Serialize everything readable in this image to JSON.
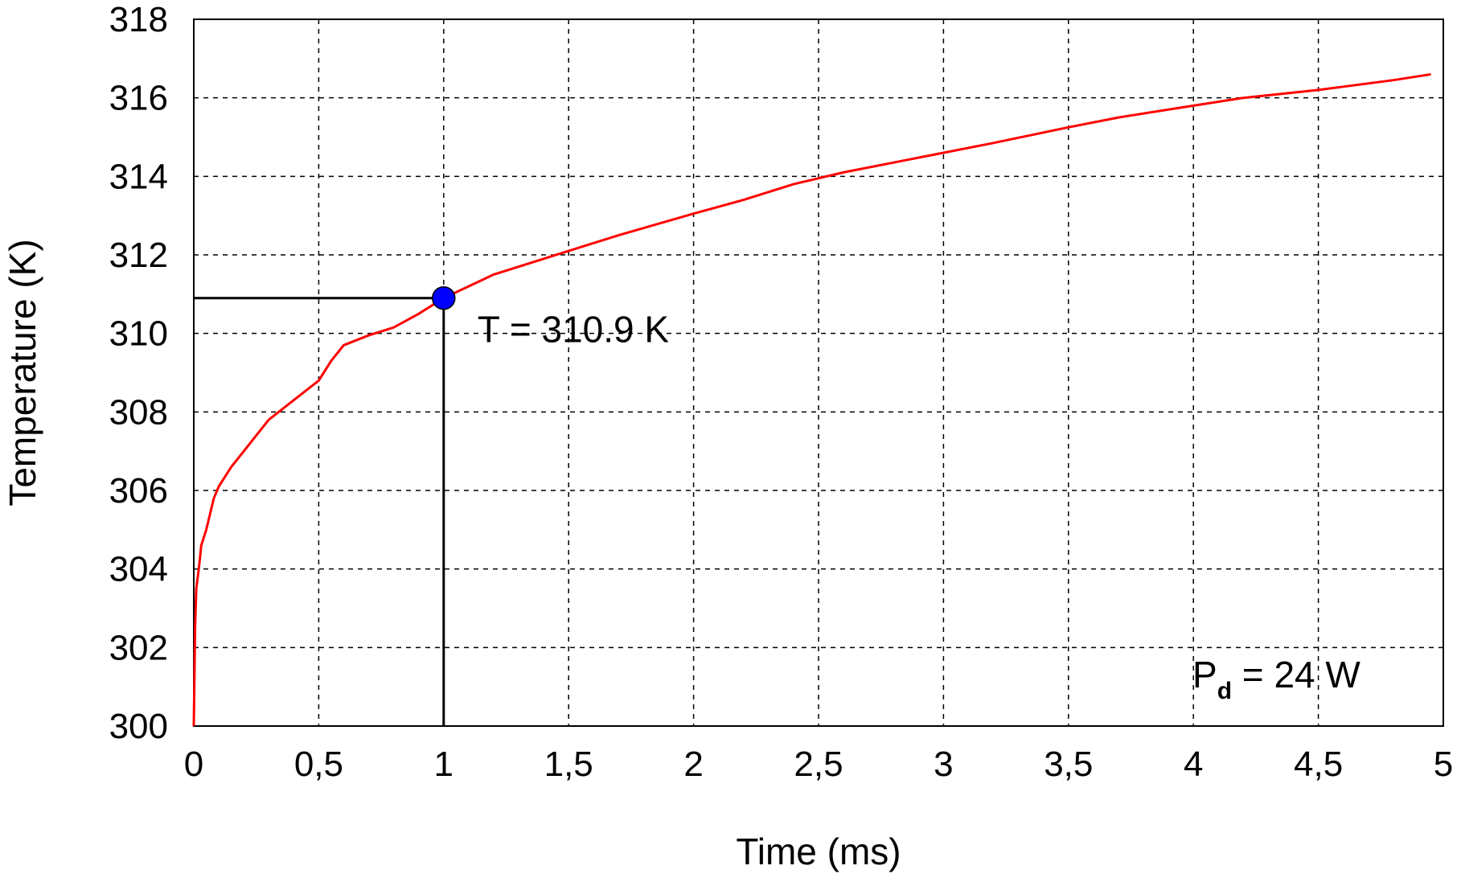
{
  "chart_data": {
    "type": "line",
    "xlabel": "Time (ms)",
    "ylabel": "Temperature (K)",
    "xlim": [
      0,
      5
    ],
    "ylim": [
      300,
      318
    ],
    "x_ticks": [
      0,
      0.5,
      1,
      1.5,
      2,
      2.5,
      3,
      3.5,
      4,
      4.5,
      5
    ],
    "x_tick_labels": [
      "0",
      "0,5",
      "1",
      "1,5",
      "2",
      "2,5",
      "3",
      "3,5",
      "4",
      "4,5",
      "5"
    ],
    "y_ticks": [
      300,
      302,
      304,
      306,
      308,
      310,
      312,
      314,
      316,
      318
    ],
    "y_tick_labels": [
      "300",
      "302",
      "304",
      "306",
      "308",
      "310",
      "312",
      "314",
      "316",
      "318"
    ],
    "grid": true,
    "line_color": "#ff0000",
    "marker_color": "#0000ff",
    "series": [
      {
        "x": [
          0,
          0.002,
          0.005,
          0.01,
          0.02,
          0.03,
          0.05,
          0.08,
          0.1,
          0.15,
          0.2,
          0.25,
          0.3,
          0.4,
          0.5,
          0.55,
          0.6,
          0.7,
          0.8,
          0.9,
          1.0,
          1.1,
          1.2,
          1.3,
          1.5,
          1.7,
          2.0,
          2.2,
          2.4,
          2.6,
          2.8,
          3.0,
          3.2,
          3.5,
          3.7,
          4.0,
          4.2,
          4.5,
          4.8,
          4.95
        ],
        "values": [
          300,
          300.9,
          302.5,
          303.5,
          304.0,
          304.6,
          305.0,
          305.8,
          306.1,
          306.6,
          307.0,
          307.4,
          307.8,
          308.3,
          308.8,
          309.3,
          309.7,
          309.95,
          310.15,
          310.5,
          310.9,
          311.2,
          311.5,
          311.7,
          312.1,
          312.5,
          313.05,
          313.4,
          313.8,
          314.1,
          314.35,
          314.6,
          314.85,
          315.25,
          315.5,
          315.8,
          316.0,
          316.2,
          316.45,
          316.6
        ]
      }
    ],
    "highlight_point": {
      "x": 1,
      "y": 310.9
    },
    "annotations": {
      "point_label": "T = 310.9 K",
      "power_label_main": "P",
      "power_label_sub": "d",
      "power_label_rest": " = 24 W"
    }
  }
}
